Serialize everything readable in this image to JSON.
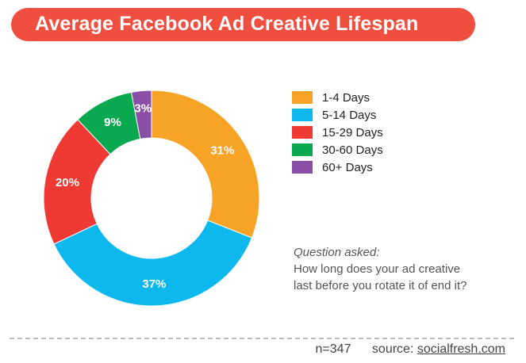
{
  "header": {
    "title": "Average Facebook Ad Creative Lifespan"
  },
  "chart_data": {
    "type": "pie",
    "donut": true,
    "title": "Average Facebook Ad Creative Lifespan",
    "categories": [
      "1-4 Days",
      "5-14 Days",
      "15-29 Days",
      "30-60 Days",
      "60+ Days"
    ],
    "values": [
      31,
      37,
      20,
      9,
      3
    ],
    "value_labels": [
      "31%",
      "37%",
      "20%",
      "9%",
      "3%"
    ],
    "colors": [
      "#f7a325",
      "#0db8ef",
      "#ef3a34",
      "#0aa84f",
      "#8b4ea6"
    ],
    "legend_position": "right"
  },
  "legend": {
    "items": [
      {
        "label": "1-4 Days",
        "color": "#f7a325"
      },
      {
        "label": "5-14 Days",
        "color": "#0db8ef"
      },
      {
        "label": "15-29 Days",
        "color": "#ef3a34"
      },
      {
        "label": "30-60 Days",
        "color": "#0aa84f"
      },
      {
        "label": "60+ Days",
        "color": "#8b4ea6"
      }
    ]
  },
  "question": {
    "title": "Question asked:",
    "line1": "How long does your ad creative",
    "line2": "last before you rotate it of end it?"
  },
  "footer": {
    "n": "n=347",
    "source_label": "source:",
    "source_link": "socialfresh.com"
  }
}
